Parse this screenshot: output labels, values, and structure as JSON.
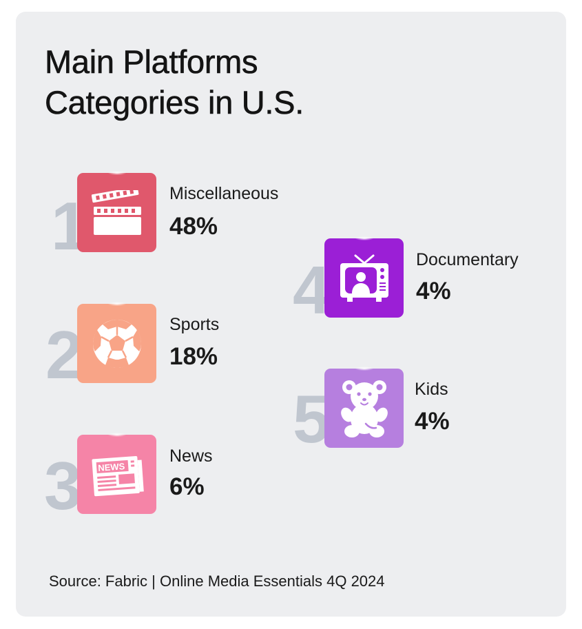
{
  "title_line1": "Main Platforms",
  "title_line2": "Categories in U.S.",
  "source": "Source: Fabric | Online Media Essentials 4Q 2024",
  "chart_data": {
    "type": "table",
    "title": "Main Platforms Categories in U.S.",
    "unit": "%",
    "categories": [
      "Miscellaneous",
      "Sports",
      "News",
      "Documentary",
      "Kids"
    ],
    "values": [
      48,
      18,
      6,
      4,
      4
    ],
    "items": [
      {
        "rank": "1",
        "label": "Miscellaneous",
        "value": 48,
        "value_text": "48%",
        "icon": "clapperboard-icon",
        "color": "#e0586c"
      },
      {
        "rank": "2",
        "label": "Sports",
        "value": 18,
        "value_text": "18%",
        "icon": "soccer-ball-icon",
        "color": "#f8a487"
      },
      {
        "rank": "3",
        "label": "News",
        "value": 6,
        "value_text": "6%",
        "icon": "newspaper-icon",
        "color": "#f584a7"
      },
      {
        "rank": "4",
        "label": "Documentary",
        "value": 4,
        "value_text": "4%",
        "icon": "television-icon",
        "color": "#9b1fd6"
      },
      {
        "rank": "5",
        "label": "Kids",
        "value": 4,
        "value_text": "4%",
        "icon": "teddy-bear-icon",
        "color": "#b67fdf"
      }
    ]
  }
}
